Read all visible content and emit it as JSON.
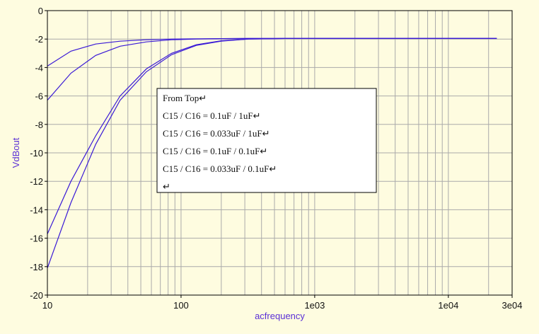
{
  "chart_data": {
    "type": "line",
    "title": "",
    "xlabel": "acfrequency",
    "ylabel": "VdBout",
    "x_scale": "log",
    "xlim": [
      10,
      30000
    ],
    "ylim": [
      -20,
      0
    ],
    "x_ticks": [
      {
        "value": 10,
        "label": "10"
      },
      {
        "value": 100,
        "label": "100"
      },
      {
        "value": 1000,
        "label": "1e03"
      },
      {
        "value": 10000,
        "label": "1e04"
      },
      {
        "value": 30000,
        "label": "3e04"
      }
    ],
    "y_ticks": [
      0,
      -2,
      -4,
      -6,
      -8,
      -10,
      -12,
      -14,
      -16,
      -18,
      -20
    ],
    "grid": true,
    "colors": {
      "background": "#fefce0",
      "grid": "#aaaaaa",
      "axis": "#000000",
      "series": "#3a1ad6",
      "label": "#5a2fd6"
    },
    "x": [
      10,
      15,
      23,
      35,
      55,
      85,
      130,
      200,
      320,
      600,
      1000,
      3000,
      10000,
      23000
    ],
    "series": [
      {
        "values": [
          -3.9,
          -2.85,
          -2.35,
          -2.15,
          -2.05,
          -2.0,
          -1.98,
          -1.97,
          -1.96,
          -1.96,
          -1.96,
          -1.96,
          -1.96,
          -1.96
        ]
      },
      {
        "values": [
          -6.3,
          -4.4,
          -3.15,
          -2.5,
          -2.2,
          -2.05,
          -2.0,
          -1.97,
          -1.96,
          -1.96,
          -1.96,
          -1.96,
          -1.96,
          -1.96
        ]
      },
      {
        "values": [
          -15.7,
          -12.0,
          -8.8,
          -6.0,
          -4.1,
          -3.0,
          -2.4,
          -2.12,
          -2.0,
          -1.96,
          -1.96,
          -1.96,
          -1.96,
          -1.96
        ]
      },
      {
        "values": [
          -18.1,
          -13.5,
          -9.4,
          -6.3,
          -4.3,
          -3.1,
          -2.45,
          -2.15,
          -2.0,
          -1.96,
          -1.96,
          -1.96,
          -1.96,
          -1.96
        ]
      }
    ],
    "annotation": {
      "lines": [
        "From Top↵",
        "C15 / C16 = 0.1uF / 1uF↵",
        "C15 / C16 = 0.033uF / 1uF↵",
        "C15 / C16 = 0.1uF / 0.1uF↵",
        "C15 / C16 = 0.033uF / 0.1uF↵",
        "↵"
      ]
    }
  }
}
